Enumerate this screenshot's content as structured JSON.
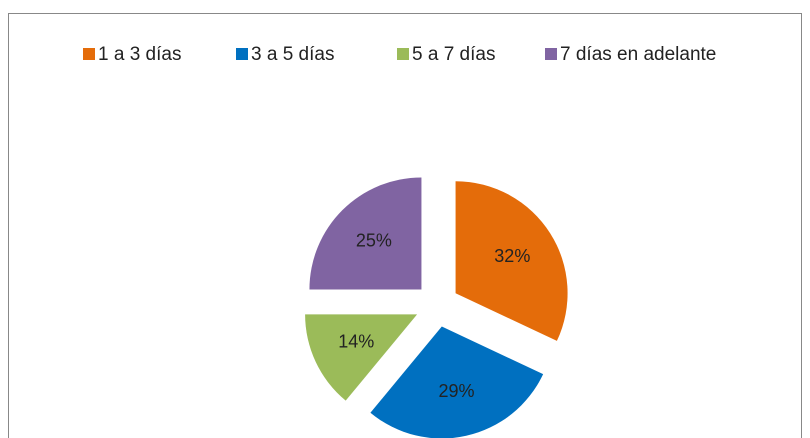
{
  "chart_data": {
    "type": "pie",
    "categories": [
      "1 a 3 días",
      "3 a 5  días",
      "5 a 7 días",
      "7 días en adelante"
    ],
    "values": [
      32,
      29,
      14,
      25
    ],
    "value_labels": [
      "32%",
      "29%",
      "14%",
      "25%"
    ],
    "colors": [
      "#e46c0a",
      "#0070c0",
      "#9bbb59",
      "#8064a2"
    ],
    "legend": "top"
  }
}
